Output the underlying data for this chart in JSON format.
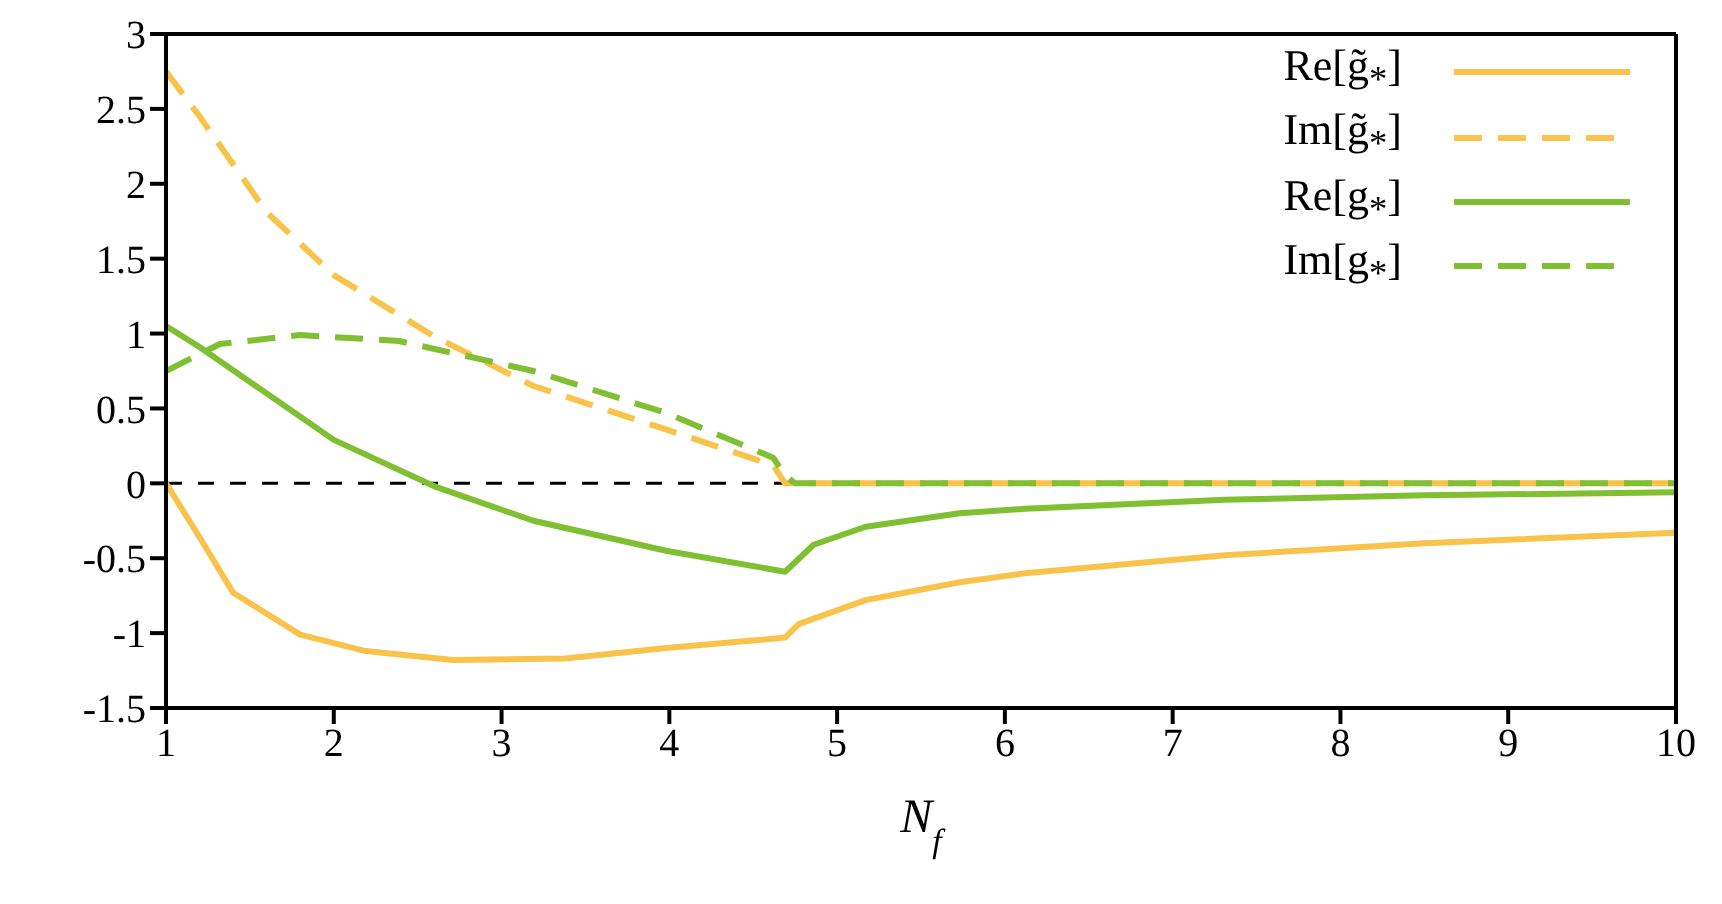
{
  "chart_data": {
    "type": "line",
    "xlabel": "N$_{f}$",
    "xlim": [
      1,
      10
    ],
    "xticks": [
      1,
      2,
      3,
      4,
      5,
      6,
      7,
      8,
      9,
      10
    ],
    "ylim": [
      -1.5,
      3
    ],
    "yticks": [
      -1.5,
      -1,
      -0.5,
      0,
      0.5,
      1,
      1.5,
      2,
      2.5,
      3
    ],
    "grid": false,
    "legend": "top right",
    "marker": "none",
    "ref_lines": [
      {
        "axis": "y",
        "value": 0,
        "color": "#000000",
        "line_style": "dashed"
      }
    ],
    "series": [
      {
        "name": "Re[g̃$_{*}$]",
        "color": "#f9c34b",
        "line_style": "solid",
        "x": [
          1,
          1.2,
          1.4,
          1.8,
          2.19,
          2.71,
          3.38,
          3.98,
          4.69,
          4.77,
          5.17,
          5.73,
          6.12,
          7.31,
          8.5,
          10
        ],
        "values": [
          0,
          -0.36,
          -0.73,
          -1.01,
          -1.12,
          -1.18,
          -1.17,
          -1.1,
          -1.03,
          -0.94,
          -0.78,
          -0.66,
          -0.6,
          -0.48,
          -0.4,
          -0.33
        ]
      },
      {
        "name": "Im[g̃$_{*}$]",
        "color": "#f9c34b",
        "line_style": "dashed",
        "x": [
          1,
          1.2,
          1.6,
          2,
          2.6,
          3.19,
          3.98,
          4.62,
          4.69,
          10
        ],
        "values": [
          2.75,
          2.45,
          1.81,
          1.39,
          0.98,
          0.65,
          0.36,
          0.12,
          0,
          0
        ]
      },
      {
        "name": "Re[g$_{*}$]",
        "color": "#7fbf31",
        "line_style": "solid",
        "x": [
          1,
          1.2,
          2,
          2.6,
          3.19,
          3.98,
          4.69,
          4.86,
          5.17,
          5.73,
          6.12,
          7.31,
          8.5,
          10
        ],
        "values": [
          1.05,
          0.91,
          0.29,
          -0.02,
          -0.25,
          -0.45,
          -0.59,
          -0.41,
          -0.29,
          -0.2,
          -0.17,
          -0.11,
          -0.08,
          -0.06
        ]
      },
      {
        "name": "Im[g$_{*}$]",
        "color": "#7fbf31",
        "line_style": "dashed",
        "x": [
          1,
          1.32,
          1.8,
          2.39,
          3.19,
          3.98,
          4.62,
          4.69,
          4.75,
          10
        ],
        "values": [
          0.75,
          0.93,
          0.99,
          0.95,
          0.75,
          0.47,
          0.17,
          0.05,
          0,
          0
        ]
      }
    ]
  }
}
